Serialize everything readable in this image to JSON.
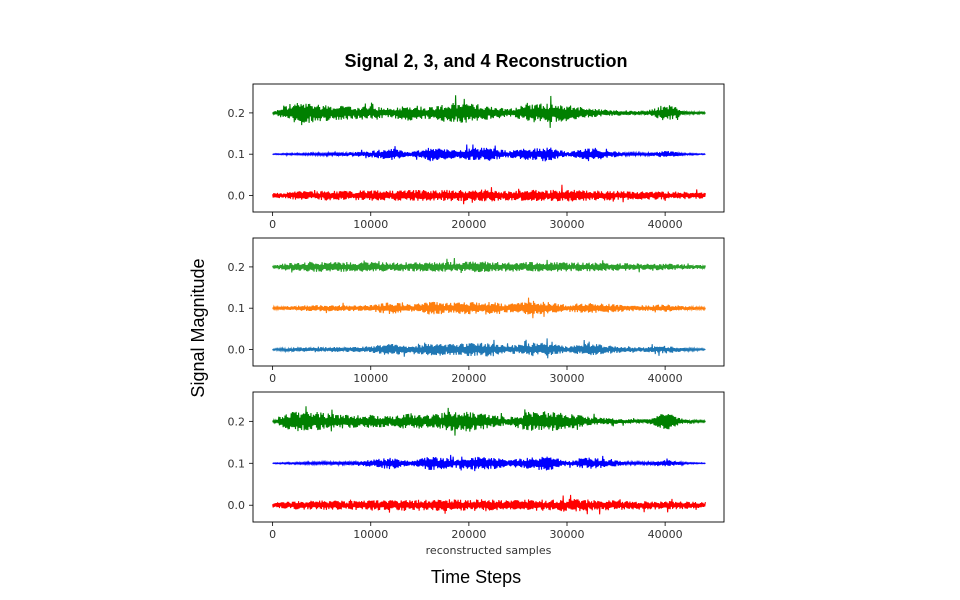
{
  "chart_data": {
    "type": "line",
    "title": "Signal 2, 3, and 4 Reconstruction",
    "xlabel": "Time Steps",
    "ylabel": "Signal Magnitude",
    "panels": [
      {
        "xlabel": "",
        "xlim": [
          -2000,
          46000
        ],
        "ylim": [
          -0.04,
          0.27
        ],
        "xticks": [
          0,
          10000,
          20000,
          30000,
          40000
        ],
        "xtick_labels": [
          "0",
          "10000",
          "20000",
          "30000",
          "40000"
        ],
        "yticks": [
          0.0,
          0.1,
          0.2
        ],
        "ytick_labels": [
          "0.0",
          "0.1",
          "0.2"
        ],
        "n_samples": 44100,
        "series": [
          {
            "offset": 0.2,
            "color": "#008000",
            "envelope": [
              0.002,
              0.025,
              0.024,
              0.018,
              0.016,
              0.016,
              0.012,
              0.02,
              0.015,
              0.024,
              0.025,
              0.017,
              0.01,
              0.023,
              0.024,
              0.02,
              0.012,
              0.008,
              0.006,
              0.005,
              0.022,
              0.004,
              0.002
            ]
          },
          {
            "offset": 0.1,
            "color": "#0000ff",
            "envelope": [
              0.001,
              0.002,
              0.003,
              0.004,
              0.005,
              0.008,
              0.015,
              0.005,
              0.017,
              0.012,
              0.015,
              0.016,
              0.008,
              0.015,
              0.018,
              0.005,
              0.014,
              0.01,
              0.004,
              0.003,
              0.009,
              0.002,
              0.001
            ]
          },
          {
            "offset": 0.0,
            "color": "#ff0000",
            "envelope": [
              0.006,
              0.01,
              0.011,
              0.012,
              0.011,
              0.013,
              0.012,
              0.014,
              0.013,
              0.014,
              0.013,
              0.015,
              0.012,
              0.014,
              0.013,
              0.016,
              0.013,
              0.012,
              0.011,
              0.01,
              0.01,
              0.009,
              0.008
            ]
          }
        ]
      },
      {
        "xlabel": "",
        "xlim": [
          -2000,
          46000
        ],
        "ylim": [
          -0.04,
          0.27
        ],
        "xticks": [
          0,
          10000,
          20000,
          30000,
          40000
        ],
        "xtick_labels": [
          "0",
          "10000",
          "20000",
          "30000",
          "40000"
        ],
        "yticks": [
          0.0,
          0.1,
          0.2
        ],
        "ytick_labels": [
          "0.0",
          "0.1",
          "0.2"
        ],
        "n_samples": 44100,
        "series": [
          {
            "offset": 0.2,
            "color": "#2ca02c",
            "envelope": [
              0.004,
              0.011,
              0.013,
              0.012,
              0.012,
              0.012,
              0.011,
              0.012,
              0.011,
              0.012,
              0.013,
              0.013,
              0.011,
              0.012,
              0.012,
              0.011,
              0.011,
              0.01,
              0.009,
              0.008,
              0.008,
              0.006,
              0.004
            ]
          },
          {
            "offset": 0.1,
            "color": "#ff7f0e",
            "envelope": [
              0.003,
              0.006,
              0.007,
              0.008,
              0.007,
              0.008,
              0.015,
              0.009,
              0.016,
              0.013,
              0.015,
              0.016,
              0.01,
              0.017,
              0.015,
              0.009,
              0.014,
              0.011,
              0.008,
              0.007,
              0.01,
              0.005,
              0.003
            ]
          },
          {
            "offset": 0.0,
            "color": "#1f77b4",
            "envelope": [
              0.002,
              0.005,
              0.006,
              0.006,
              0.006,
              0.008,
              0.016,
              0.007,
              0.017,
              0.013,
              0.016,
              0.017,
              0.009,
              0.017,
              0.016,
              0.007,
              0.015,
              0.011,
              0.006,
              0.006,
              0.01,
              0.004,
              0.002
            ]
          }
        ]
      },
      {
        "xlabel": "reconstructed samples",
        "xlim": [
          -2000,
          46000
        ],
        "ylim": [
          -0.04,
          0.27
        ],
        "xticks": [
          0,
          10000,
          20000,
          30000,
          40000
        ],
        "xtick_labels": [
          "0",
          "10000",
          "20000",
          "30000",
          "40000"
        ],
        "yticks": [
          0.0,
          0.1,
          0.2
        ],
        "ytick_labels": [
          "0.0",
          "0.1",
          "0.2"
        ],
        "n_samples": 44100,
        "series": [
          {
            "offset": 0.2,
            "color": "#008000",
            "envelope": [
              0.002,
              0.025,
              0.024,
              0.018,
              0.016,
              0.016,
              0.012,
              0.02,
              0.015,
              0.024,
              0.025,
              0.017,
              0.01,
              0.023,
              0.024,
              0.02,
              0.012,
              0.008,
              0.006,
              0.005,
              0.022,
              0.004,
              0.002
            ]
          },
          {
            "offset": 0.1,
            "color": "#0000ff",
            "envelope": [
              0.001,
              0.002,
              0.003,
              0.004,
              0.005,
              0.008,
              0.015,
              0.005,
              0.017,
              0.012,
              0.015,
              0.016,
              0.008,
              0.015,
              0.018,
              0.005,
              0.014,
              0.01,
              0.004,
              0.003,
              0.009,
              0.002,
              0.001
            ]
          },
          {
            "offset": 0.0,
            "color": "#ff0000",
            "envelope": [
              0.006,
              0.01,
              0.011,
              0.012,
              0.011,
              0.013,
              0.012,
              0.014,
              0.013,
              0.014,
              0.013,
              0.015,
              0.012,
              0.014,
              0.013,
              0.016,
              0.013,
              0.012,
              0.011,
              0.01,
              0.01,
              0.009,
              0.008
            ]
          }
        ]
      }
    ]
  }
}
